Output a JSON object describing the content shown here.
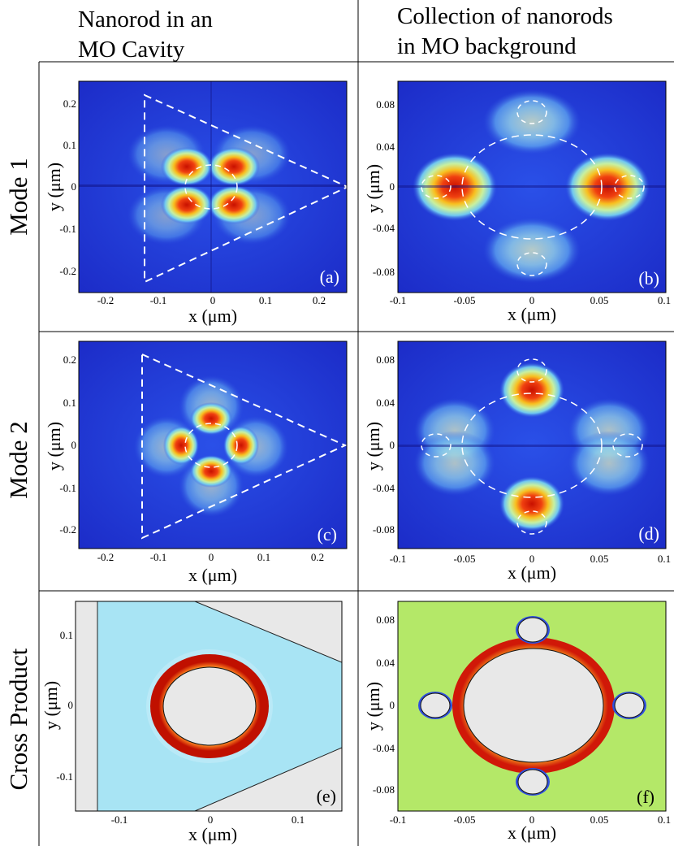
{
  "headers": {
    "col1_line1": "Nanorod in an",
    "col1_line2": "MO Cavity",
    "col2_line1": "Collection of nanorods",
    "col2_line2": "in MO background"
  },
  "rows": {
    "mode1": "Mode 1",
    "mode2": "Mode 2",
    "cross": "Cross Product"
  },
  "panels": {
    "a": {
      "label": "(a)",
      "xlabel": "x (μm)",
      "ylabel": "y (μm)",
      "xticks": [
        "-0.2",
        "-0.1",
        "0",
        "0.1",
        "0.2"
      ],
      "yticks": [
        "0.2",
        "0.1",
        "0",
        "-0.1",
        "-0.2"
      ]
    },
    "b": {
      "label": "(b)",
      "xlabel": "x (μm)",
      "ylabel": "y (μm)",
      "xticks": [
        "-0.1",
        "-0.05",
        "0",
        "0.05",
        "0.1"
      ],
      "yticks": [
        "0.08",
        "0.04",
        "0",
        "-0.04",
        "-0.08"
      ]
    },
    "c": {
      "label": "(c)",
      "xlabel": "x (μm)",
      "ylabel": "y (μm)",
      "xticks": [
        "-0.2",
        "-0.1",
        "0",
        "0.1",
        "0.2"
      ],
      "yticks": [
        "0.2",
        "0.1",
        "0",
        "-0.1",
        "-0.2"
      ]
    },
    "d": {
      "label": "(d)",
      "xlabel": "x (μm)",
      "ylabel": "y (μm)",
      "xticks": [
        "-0.1",
        "-0.05",
        "0",
        "0.05",
        "0.1"
      ],
      "yticks": [
        "0.08",
        "0.04",
        "0",
        "-0.04",
        "-0.08"
      ]
    },
    "e": {
      "label": "(e)",
      "xlabel": "x (μm)",
      "ylabel": "y (μm)",
      "xticks": [
        "-0.1",
        "0",
        "0.1"
      ],
      "yticks": [
        "0.1",
        "0",
        "-0.1"
      ]
    },
    "f": {
      "label": "(f)",
      "xlabel": "x (μm)",
      "ylabel": "y (μm)",
      "xticks": [
        "-0.1",
        "-0.05",
        "0",
        "0.05",
        "0.1"
      ],
      "yticks": [
        "0.08",
        "0.04",
        "0",
        "-0.04",
        "-0.08"
      ]
    }
  },
  "colors": {
    "field_bg": "#2038d8",
    "hot": "#d81808",
    "cross_bg_left": "#a8e4f4",
    "cross_bg_right": "#b4e868",
    "rod_fill": "#e8e8e8"
  }
}
